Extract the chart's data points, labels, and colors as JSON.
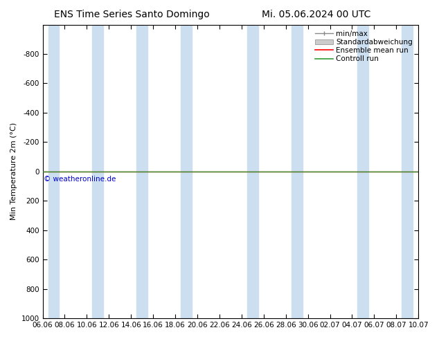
{
  "title_left": "ENS Time Series Santo Domingo",
  "title_right": "Mi. 05.06.2024 00 UTC",
  "ylabel": "Min Temperature 2m (°C)",
  "ylim_top": -1000,
  "ylim_bottom": 1000,
  "y_ticks": [
    -800,
    -600,
    -400,
    -200,
    0,
    200,
    400,
    600,
    800,
    1000
  ],
  "x_tick_labels": [
    "06.06",
    "08.06",
    "10.06",
    "12.06",
    "14.06",
    "16.06",
    "18.06",
    "20.06",
    "22.06",
    "24.06",
    "26.06",
    "28.06",
    "30.06",
    "02.07",
    "04.07",
    "06.07",
    "08.07",
    "10.07"
  ],
  "x_tick_positions": [
    0,
    2,
    4,
    6,
    8,
    10,
    12,
    14,
    16,
    18,
    20,
    22,
    24,
    26,
    28,
    30,
    32,
    34
  ],
  "blue_band_positions": [
    [
      0.5,
      1.5
    ],
    [
      4.5,
      5.5
    ],
    [
      8.5,
      9.5
    ],
    [
      12.5,
      13.5
    ],
    [
      18.5,
      19.5
    ],
    [
      22.5,
      23.5
    ],
    [
      28.5,
      29.5
    ],
    [
      32.5,
      33.5
    ]
  ],
  "blue_band_color": "#ccdff0",
  "green_line_y": 0,
  "green_line_color": "#339933",
  "red_line_color": "#ff0000",
  "background_color": "#ffffff",
  "plot_bg_color": "#ffffff",
  "legend_entries": [
    "min/max",
    "Standardabweichung",
    "Ensemble mean run",
    "Controll run"
  ],
  "copyright": "© weatheronline.de",
  "copyright_color": "#0000cc",
  "title_fontsize": 10,
  "label_fontsize": 8,
  "tick_fontsize": 7.5
}
